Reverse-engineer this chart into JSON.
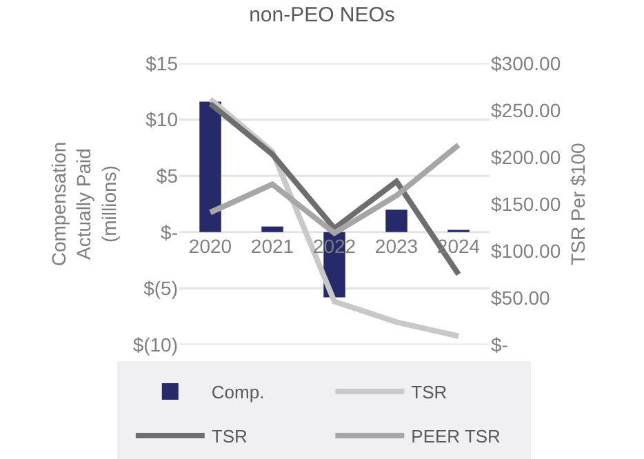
{
  "chart_data": {
    "type": "bar",
    "title": "non-PEO NEOs",
    "ylabel": "Compensation\nActually Paid\n(millions)",
    "y2label": "TSR Per $100",
    "categories": [
      "2020",
      "2021",
      "2022",
      "2023",
      "2024"
    ],
    "series": [
      {
        "name": "Comp.",
        "color": "#262a6b",
        "values": [
          11.6,
          0.5,
          -5.8,
          2.0,
          0.2
        ]
      },
      {
        "name": "TSR",
        "type": "line",
        "axis": "y2",
        "color": "#c8c8c8",
        "values": [
          262,
          206,
          46,
          24,
          9
        ]
      },
      {
        "name": "TSR",
        "type": "line",
        "axis": "y2",
        "color": "#6e6e6e",
        "values": [
          257,
          203,
          124,
          174,
          75
        ]
      },
      {
        "name": "PEER TSR",
        "type": "line",
        "axis": "y2",
        "color": "#a6a6a6",
        "values": [
          141,
          171,
          119,
          159,
          213
        ]
      }
    ],
    "ylim": [
      -10,
      15
    ],
    "yticks": [
      {
        "value": -10,
        "label": "$(10)"
      },
      {
        "value": -5,
        "label": "$(5)"
      },
      {
        "value": 0,
        "label": "$-"
      },
      {
        "value": 5,
        "label": "$5"
      },
      {
        "value": 10,
        "label": "$10"
      },
      {
        "value": 15,
        "label": "$15"
      }
    ],
    "y2lim": [
      0,
      300
    ],
    "y2ticks": [
      {
        "value": 0,
        "label": "$-"
      },
      {
        "value": 50,
        "label": "$50.00"
      },
      {
        "value": 100,
        "label": "$100.00"
      },
      {
        "value": 150,
        "label": "$150.00"
      },
      {
        "value": 200,
        "label": "$200.00"
      },
      {
        "value": 250,
        "label": "$250.00"
      },
      {
        "value": 300,
        "label": "$300.00"
      }
    ],
    "grid": "y",
    "legend": "bottom",
    "marker": "none",
    "line_style": "solid"
  }
}
